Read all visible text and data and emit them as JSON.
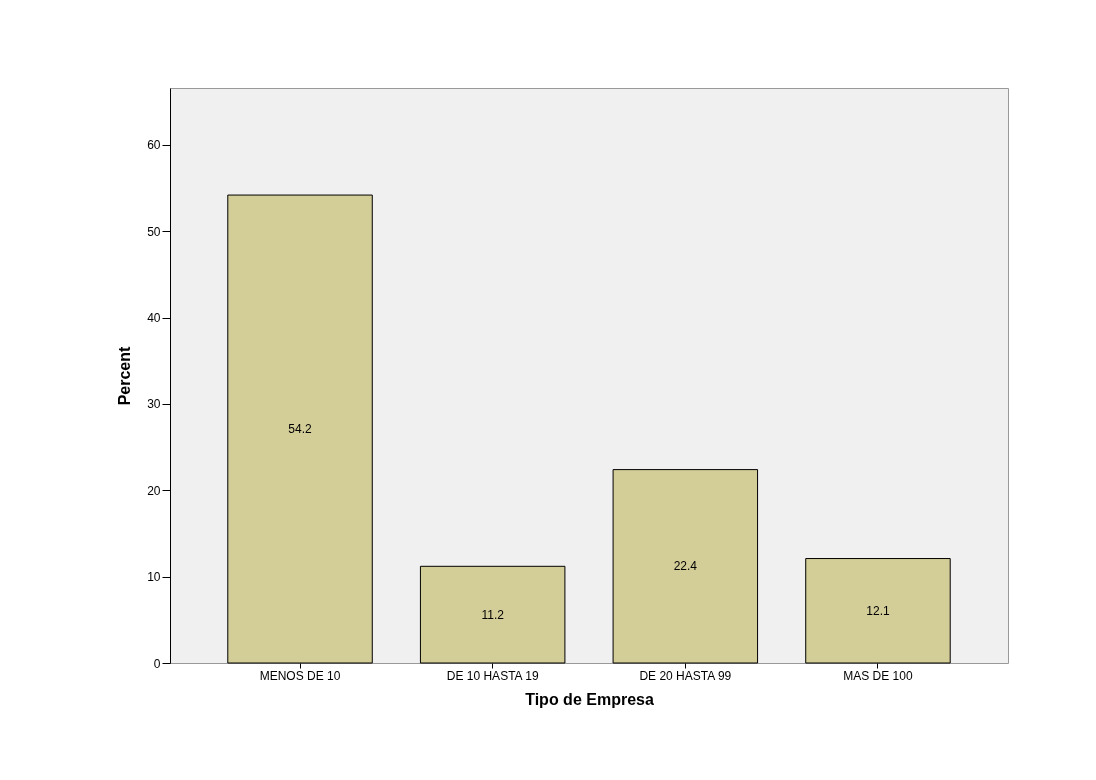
{
  "chart_data": {
    "type": "bar",
    "xlabel": "Tipo de Empresa",
    "ylabel": "Percent",
    "categories": [
      "MENOS DE 10",
      "DE 10 HASTA 19",
      "DE 20 HASTA 99",
      "MAS DE 100"
    ],
    "values": [
      54.2,
      11.2,
      22.4,
      12.1
    ],
    "color": "#d3cd98",
    "ylim": [
      0,
      66.6
    ],
    "yticks": [
      0,
      10,
      20,
      30,
      40,
      50,
      60
    ],
    "data_labels": true
  }
}
